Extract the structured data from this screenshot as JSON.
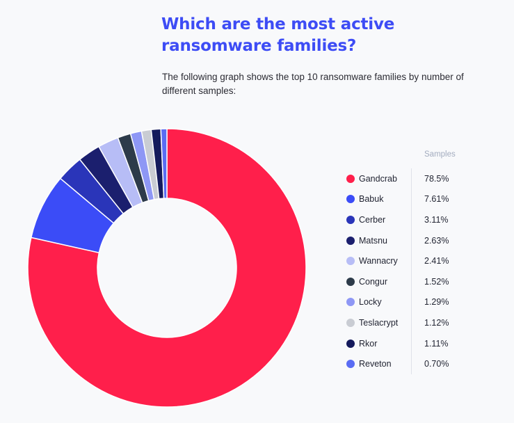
{
  "header": {
    "title": "Which are the most active ransomware families?",
    "subtitle": "The following graph shows the top 10 ransomware families by number of different samples:"
  },
  "legend": {
    "header": "Samples"
  },
  "chart_data": {
    "type": "pie",
    "donut": true,
    "title": "",
    "legend_position": "right",
    "categories": [
      "Gandcrab",
      "Babuk",
      "Cerber",
      "Matsnu",
      "Wannacry",
      "Congur",
      "Locky",
      "Teslacrypt",
      "Rkor",
      "Reveton"
    ],
    "values": [
      78.5,
      7.61,
      3.11,
      2.63,
      2.41,
      1.52,
      1.29,
      1.12,
      1.11,
      0.7
    ],
    "labels": [
      "78.5%",
      "7.61%",
      "3.11%",
      "2.63%",
      "2.41%",
      "1.52%",
      "1.29%",
      "1.12%",
      "1.11%",
      "0.70%"
    ],
    "colors": [
      "#ff1f4b",
      "#3b4cf7",
      "#2a35b9",
      "#1b1f6e",
      "#b7bdf6",
      "#2d3b4a",
      "#8e97f5",
      "#c9ccd3",
      "#141a5c",
      "#5a6cf3"
    ]
  }
}
